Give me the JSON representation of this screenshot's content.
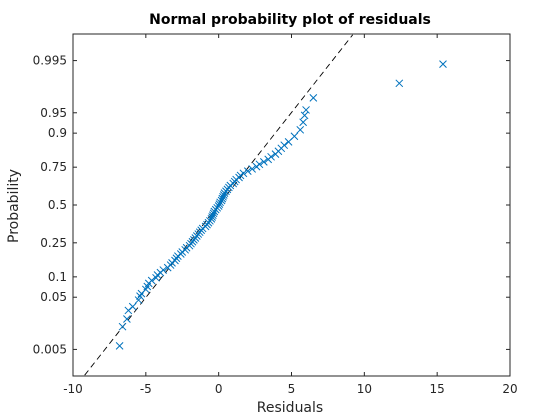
{
  "chart_data": {
    "type": "scatter",
    "title": "Normal probability plot of residuals",
    "xlabel": "Residuals",
    "ylabel": "Probability",
    "xlim": [
      -10,
      20
    ],
    "x_ticks": [
      -10,
      -5,
      0,
      5,
      10,
      15,
      20
    ],
    "x_tick_labels": [
      "-10",
      "-5",
      "0",
      "5",
      "10",
      "15",
      "20"
    ],
    "y_scale": "normal-probability",
    "y_ticks": [
      0.005,
      0.05,
      0.1,
      0.25,
      0.5,
      0.75,
      0.9,
      0.95,
      0.995
    ],
    "y_tick_labels": [
      "0.005",
      "0.05",
      "0.1",
      "0.25",
      "0.5",
      "0.75",
      "0.9",
      "0.95",
      "0.995"
    ],
    "grid": false,
    "marker": "x",
    "marker_color": "#0072BD",
    "reference_line": {
      "style": "dashed",
      "color": "#000000",
      "x": [
        -9.2,
        9.2
      ],
      "p": [
        0.0012,
        0.9988
      ]
    },
    "series": [
      {
        "x": [
          -6.8,
          -6.6,
          -6.3,
          -6.2,
          -5.9,
          -5.5,
          -5.4,
          -5.3,
          -5.0,
          -4.9,
          -4.8,
          -4.6,
          -4.3,
          -4.2,
          -4.0,
          -3.8,
          -3.5,
          -3.3,
          -3.2,
          -3.0,
          -2.9,
          -2.8,
          -2.6,
          -2.5,
          -2.3,
          -2.2,
          -2.0,
          -1.9,
          -1.8,
          -1.7,
          -1.6,
          -1.5,
          -1.4,
          -1.3,
          -1.2,
          -1.1,
          -0.9,
          -0.8,
          -0.7,
          -0.6,
          -0.5,
          -0.45,
          -0.4,
          -0.35,
          -0.3,
          -0.2,
          -0.1,
          0.0,
          0.05,
          0.1,
          0.2,
          0.25,
          0.3,
          0.35,
          0.4,
          0.5,
          0.6,
          0.7,
          0.8,
          1.0,
          1.1,
          1.2,
          1.4,
          1.5,
          1.7,
          2.0,
          2.3,
          2.6,
          2.8,
          3.1,
          3.4,
          3.6,
          3.9,
          4.1,
          4.3,
          4.5,
          4.8,
          5.2,
          5.6,
          5.8,
          5.9,
          6.0,
          6.5,
          12.4,
          15.4
        ],
        "p": [
          0.006,
          0.015,
          0.021,
          0.03,
          0.035,
          0.045,
          0.052,
          0.057,
          0.066,
          0.073,
          0.081,
          0.089,
          0.097,
          0.106,
          0.114,
          0.123,
          0.132,
          0.142,
          0.151,
          0.161,
          0.171,
          0.181,
          0.191,
          0.201,
          0.212,
          0.223,
          0.234,
          0.245,
          0.256,
          0.267,
          0.278,
          0.29,
          0.302,
          0.314,
          0.326,
          0.338,
          0.351,
          0.363,
          0.376,
          0.389,
          0.402,
          0.415,
          0.428,
          0.441,
          0.454,
          0.467,
          0.48,
          0.493,
          0.506,
          0.519,
          0.532,
          0.545,
          0.558,
          0.571,
          0.584,
          0.597,
          0.61,
          0.623,
          0.636,
          0.649,
          0.662,
          0.675,
          0.688,
          0.701,
          0.714,
          0.727,
          0.74,
          0.753,
          0.766,
          0.779,
          0.792,
          0.805,
          0.818,
          0.831,
          0.844,
          0.857,
          0.87,
          0.89,
          0.91,
          0.93,
          0.945,
          0.955,
          0.972,
          0.985,
          0.994
        ]
      }
    ]
  }
}
